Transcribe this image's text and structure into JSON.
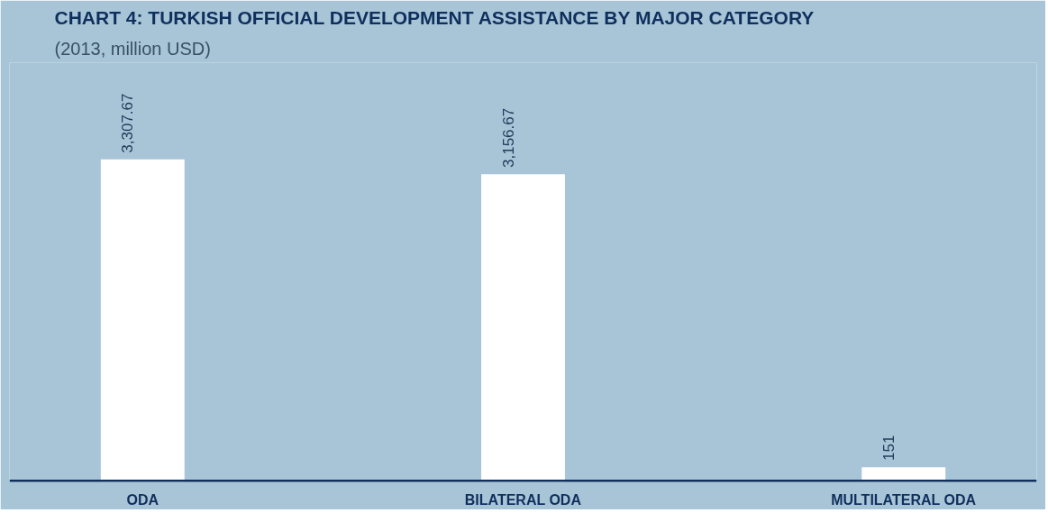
{
  "chart_data": {
    "type": "bar",
    "title": "CHART 4: TURKISH OFFICIAL DEVELOPMENT ASSISTANCE BY MAJOR CATEGORY",
    "subtitle": "(2013, million USD)",
    "categories": [
      "ODA",
      "BILATERAL ODA",
      "MULTILATERAL ODA"
    ],
    "values": [
      3307.67,
      3156.67,
      151
    ],
    "value_labels": [
      "3,307.67",
      "3,156.67",
      "151"
    ],
    "color": "#ffffff"
  }
}
